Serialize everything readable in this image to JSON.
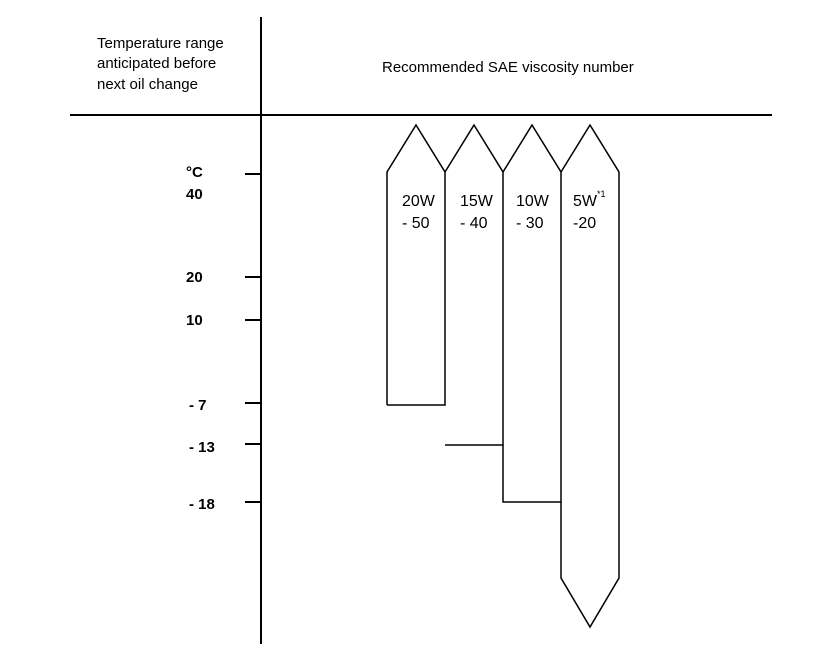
{
  "header": {
    "left_title_lines": [
      "Temperature range",
      "anticipated before",
      "next oil change"
    ],
    "right_title": "Recommended SAE viscosity number"
  },
  "temperature_axis": {
    "unit": "°C",
    "ticks": [
      {
        "label": "40",
        "value": 40
      },
      {
        "label": "20",
        "value": 20
      },
      {
        "label": "10",
        "value": 10
      },
      {
        "label": "- 7",
        "value": -7
      },
      {
        "label": "- 13",
        "value": -13
      },
      {
        "label": "- 18",
        "value": -18
      }
    ]
  },
  "grades": [
    {
      "line1": "20W",
      "line2": "- 50",
      "min_temp": -7,
      "open_bottom": false
    },
    {
      "line1": "15W",
      "line2": "- 40",
      "min_temp": -13,
      "open_bottom": false
    },
    {
      "line1": "10W",
      "line2": "- 30",
      "min_temp": -18,
      "open_bottom": false
    },
    {
      "line1": "5W",
      "footnote": "*1",
      "line2": "-20",
      "min_temp": null,
      "open_bottom": true
    }
  ]
}
